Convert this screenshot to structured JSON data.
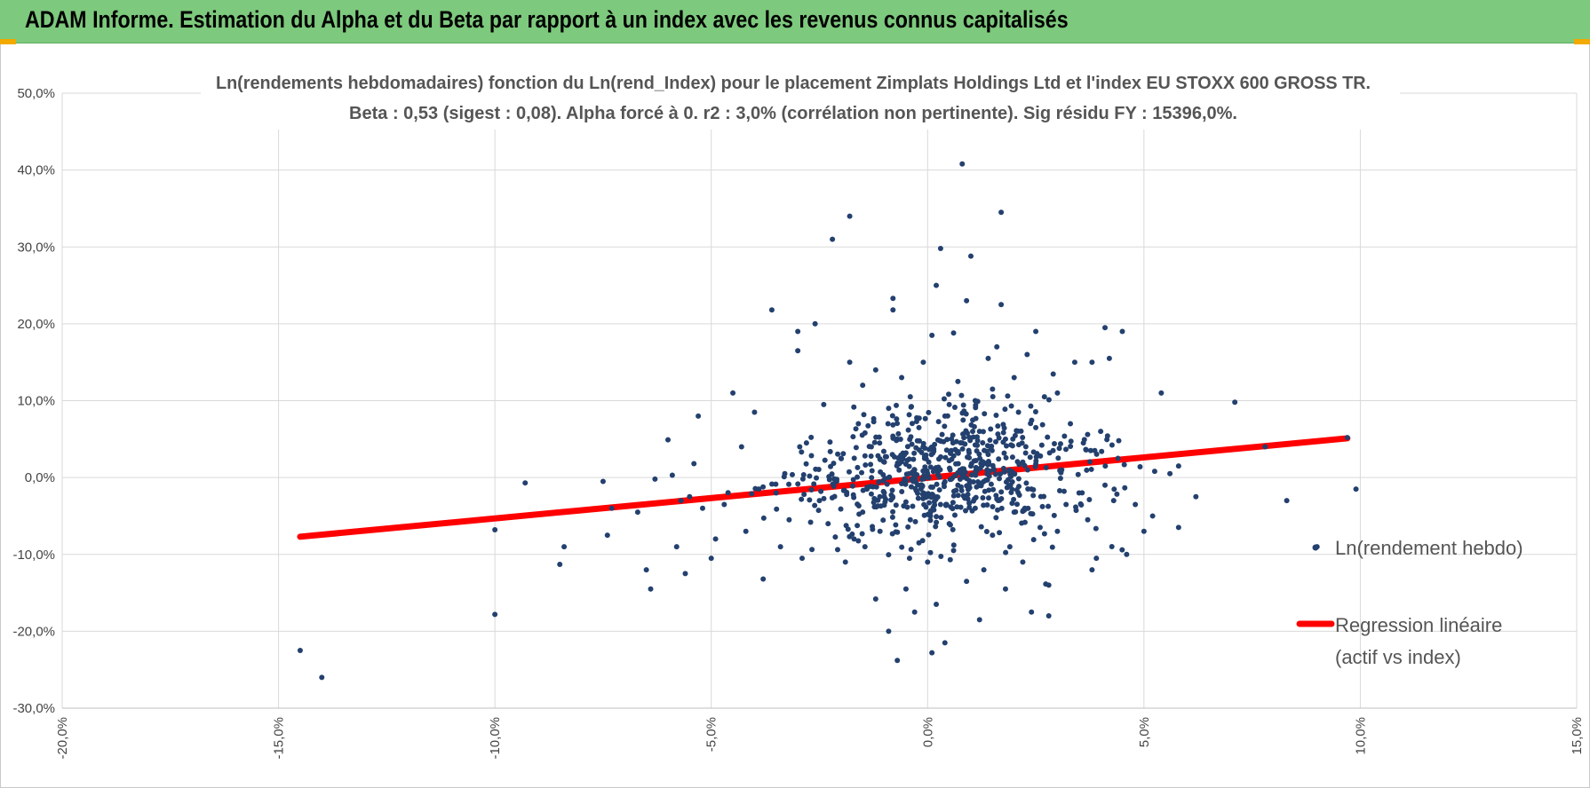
{
  "header": {
    "title": "ADAM Informe. Estimation du Alpha et du Beta par rapport à un index avec les revenus connus capitalisés",
    "background_color": "#7dc97d",
    "accent_color": "#f2a900"
  },
  "chart_data": {
    "type": "scatter",
    "title_line1": "Ln(rendements hebdomadaires) fonction du Ln(rend_Index) pour le placement Zimplats Holdings Ltd et l'index EU STOXX 600 GROSS TR.",
    "title_line2": "Beta : 0,53 (sigest : 0,08).  Alpha forcé à 0. r2 : 3,0% (corrélation non pertinente). Sig résidu FY : 15396,0%.",
    "xlim": [
      -20,
      15
    ],
    "ylim": [
      -30,
      50
    ],
    "x_ticks": [
      -20,
      -15,
      -10,
      -5,
      0,
      5,
      10,
      15
    ],
    "x_tick_labels": [
      "-20,0%",
      "-15,0%",
      "-10,0%",
      "-5,0%",
      "0,0%",
      "5,0%",
      "10,0%",
      "15,0%"
    ],
    "y_ticks": [
      -30,
      -20,
      -10,
      0,
      10,
      20,
      30,
      40,
      50
    ],
    "y_tick_labels": [
      "-30,0%",
      "-20,0%",
      "-10,0%",
      "0,0%",
      "10,0%",
      "20,0%",
      "30,0%",
      "40,0%",
      "50,0%"
    ],
    "grid": true,
    "legend_position": "right",
    "series": [
      {
        "name": "Ln(rendement hebdo)",
        "kind": "scatter",
        "color": "#23406e",
        "points": [
          [
            -14.5,
            -22.5
          ],
          [
            -14.0,
            -26.0
          ],
          [
            -10.0,
            -17.8
          ],
          [
            -10.0,
            -6.8
          ],
          [
            -9.3,
            -0.7
          ],
          [
            -8.5,
            -11.3
          ],
          [
            -8.4,
            -9.0
          ],
          [
            -7.5,
            -0.5
          ],
          [
            -7.4,
            -7.5
          ],
          [
            -7.3,
            -4.0
          ],
          [
            -6.7,
            -4.5
          ],
          [
            -6.5,
            -12.0
          ],
          [
            -6.4,
            -14.5
          ],
          [
            -6.3,
            -0.2
          ],
          [
            -6.0,
            4.9
          ],
          [
            -5.9,
            0.3
          ],
          [
            -5.8,
            -9.0
          ],
          [
            -5.7,
            -3.0
          ],
          [
            -5.6,
            -12.5
          ],
          [
            -5.5,
            -2.5
          ],
          [
            -5.4,
            1.8
          ],
          [
            -5.3,
            8.0
          ],
          [
            -5.2,
            -4.0
          ],
          [
            -5.0,
            -10.5
          ],
          [
            -4.9,
            -8.0
          ],
          [
            -4.7,
            -3.5
          ],
          [
            -4.5,
            11.0
          ],
          [
            -4.3,
            4.0
          ],
          [
            -4.2,
            -7.0
          ],
          [
            -4.0,
            8.5
          ],
          [
            -3.9,
            -1.5
          ],
          [
            -3.8,
            -13.2
          ],
          [
            -3.6,
            21.8
          ],
          [
            -3.5,
            -2.0
          ],
          [
            -3.4,
            -9.0
          ],
          [
            -3.3,
            0.5
          ],
          [
            -3.2,
            -5.5
          ],
          [
            -3.0,
            19.0
          ],
          [
            -3.0,
            16.5
          ],
          [
            -2.9,
            -10.5
          ],
          [
            -2.8,
            4.5
          ],
          [
            -2.6,
            20.0
          ],
          [
            -2.5,
            -3.0
          ],
          [
            -2.4,
            9.5
          ],
          [
            -2.3,
            -6.0
          ],
          [
            -2.2,
            31.0
          ],
          [
            -2.1,
            -0.5
          ],
          [
            -2.0,
            2.5
          ],
          [
            -1.9,
            -11.0
          ],
          [
            -1.8,
            15.0
          ],
          [
            -1.8,
            34.0
          ],
          [
            -1.7,
            -8.0
          ],
          [
            -1.6,
            7.0
          ],
          [
            -1.5,
            -4.5
          ],
          [
            -1.5,
            12.0
          ],
          [
            -1.4,
            -1.5
          ],
          [
            -1.3,
            4.0
          ],
          [
            -1.2,
            -15.8
          ],
          [
            -1.2,
            14.0
          ],
          [
            -1.1,
            -7.0
          ],
          [
            -1.0,
            2.0
          ],
          [
            -1.0,
            -2.5
          ],
          [
            -0.9,
            9.0
          ],
          [
            -0.9,
            -20.0
          ],
          [
            -0.8,
            23.3
          ],
          [
            -0.8,
            21.8
          ],
          [
            -0.7,
            -23.8
          ],
          [
            -0.7,
            5.0
          ],
          [
            -0.6,
            -0.8
          ],
          [
            -0.6,
            13.0
          ],
          [
            -0.5,
            -14.5
          ],
          [
            -0.5,
            3.2
          ],
          [
            -0.4,
            -5.5
          ],
          [
            -0.4,
            10.5
          ],
          [
            -0.3,
            -17.5
          ],
          [
            -0.3,
            1.0
          ],
          [
            -0.2,
            -8.5
          ],
          [
            -0.2,
            6.5
          ],
          [
            -0.1,
            -2.0
          ],
          [
            -0.1,
            15.0
          ],
          [
            0.0,
            0.5
          ],
          [
            0.0,
            -11.0
          ],
          [
            0.1,
            -22.8
          ],
          [
            0.1,
            18.5
          ],
          [
            0.2,
            -16.5
          ],
          [
            0.2,
            25.0
          ],
          [
            0.3,
            -3.5
          ],
          [
            0.3,
            29.8
          ],
          [
            0.4,
            -21.5
          ],
          [
            0.4,
            8.0
          ],
          [
            0.5,
            2.2
          ],
          [
            0.5,
            -6.0
          ],
          [
            0.6,
            18.8
          ],
          [
            0.6,
            -9.5
          ],
          [
            0.7,
            12.5
          ],
          [
            0.7,
            -1.0
          ],
          [
            0.8,
            40.8
          ],
          [
            0.8,
            4.5
          ],
          [
            0.9,
            -13.5
          ],
          [
            0.9,
            23.0
          ],
          [
            1.0,
            1.5
          ],
          [
            1.0,
            28.8
          ],
          [
            1.1,
            -4.0
          ],
          [
            1.1,
            10.0
          ],
          [
            1.2,
            -18.5
          ],
          [
            1.2,
            6.0
          ],
          [
            1.3,
            -0.5
          ],
          [
            1.3,
            -12.0
          ],
          [
            1.4,
            15.5
          ],
          [
            1.4,
            3.0
          ],
          [
            1.5,
            -7.5
          ],
          [
            1.5,
            11.5
          ],
          [
            1.6,
            -2.8
          ],
          [
            1.6,
            17.0
          ],
          [
            1.7,
            34.5
          ],
          [
            1.7,
            22.5
          ],
          [
            1.8,
            -14.5
          ],
          [
            1.8,
            5.0
          ],
          [
            1.9,
            -9.0
          ],
          [
            1.9,
            0.8
          ],
          [
            2.0,
            13.0
          ],
          [
            2.0,
            -4.5
          ],
          [
            2.1,
            8.5
          ],
          [
            2.2,
            -11.0
          ],
          [
            2.2,
            2.0
          ],
          [
            2.3,
            16.0
          ],
          [
            2.4,
            -17.5
          ],
          [
            2.4,
            -1.5
          ],
          [
            2.5,
            19.0
          ],
          [
            2.5,
            6.5
          ],
          [
            2.6,
            -6.5
          ],
          [
            2.7,
            10.5
          ],
          [
            2.8,
            -18.0
          ],
          [
            2.8,
            -14.0
          ],
          [
            2.9,
            3.5
          ],
          [
            3.0,
            -7.0
          ],
          [
            3.0,
            11.0
          ],
          [
            3.1,
            1.0
          ],
          [
            3.2,
            -3.5
          ],
          [
            3.3,
            7.0
          ],
          [
            3.4,
            15.0
          ],
          [
            3.5,
            -2.0
          ],
          [
            3.6,
            4.5
          ],
          [
            3.7,
            -5.5
          ],
          [
            3.8,
            15.0
          ],
          [
            3.8,
            -12.0
          ],
          [
            3.9,
            -10.5
          ],
          [
            4.0,
            6.0
          ],
          [
            4.1,
            19.5
          ],
          [
            4.1,
            -1.0
          ],
          [
            4.2,
            15.5
          ],
          [
            4.3,
            -3.0
          ],
          [
            4.4,
            2.5
          ],
          [
            4.5,
            19.0
          ],
          [
            4.6,
            -10.0
          ],
          [
            4.8,
            -3.5
          ],
          [
            5.0,
            -7.0
          ],
          [
            5.2,
            -5.0
          ],
          [
            5.4,
            11.0
          ],
          [
            5.6,
            0.5
          ],
          [
            5.8,
            -6.5
          ],
          [
            5.8,
            1.5
          ],
          [
            6.2,
            -2.5
          ],
          [
            7.1,
            9.8
          ],
          [
            7.8,
            4.0
          ],
          [
            8.3,
            -3.0
          ],
          [
            9.0,
            -9.0
          ],
          [
            9.7,
            5.2
          ],
          [
            9.9,
            -1.5
          ]
        ]
      },
      {
        "name": "Regression linéaire",
        "name_line2": "(actif vs index)",
        "kind": "line",
        "color": "#ff0000",
        "x": [
          -14.5,
          9.7
        ],
        "y": [
          -7.7,
          5.1
        ]
      }
    ]
  }
}
